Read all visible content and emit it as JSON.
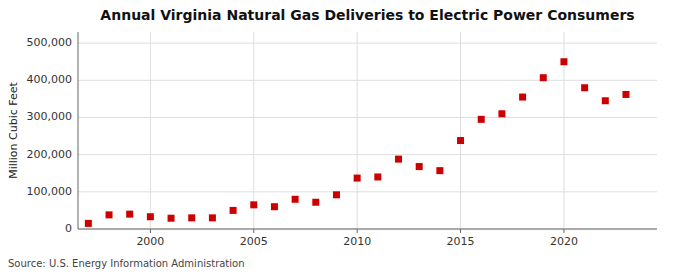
{
  "chart_data": {
    "type": "scatter",
    "title": "Annual Virginia Natural Gas Deliveries to Electric Power Consumers",
    "ylabel": "Million Cubic Feet",
    "source": "Source: U.S. Energy Information Administration",
    "x": [
      1997,
      1998,
      1999,
      2000,
      2001,
      2002,
      2003,
      2004,
      2005,
      2006,
      2007,
      2008,
      2009,
      2010,
      2011,
      2012,
      2013,
      2014,
      2015,
      2016,
      2017,
      2018,
      2019,
      2020,
      2021,
      2022,
      2023
    ],
    "values": [
      15000,
      38000,
      40000,
      33000,
      29000,
      30000,
      30000,
      50000,
      65000,
      60000,
      80000,
      72000,
      92000,
      137000,
      140000,
      188000,
      168000,
      157000,
      238000,
      295000,
      310000,
      355000,
      407000,
      450000,
      380000,
      345000,
      362000
    ],
    "color": "#cc0000",
    "marker": "square",
    "xlim": [
      1996.5,
      2024.5
    ],
    "ylim": [
      0,
      530000
    ],
    "xticks": [
      2000,
      2005,
      2010,
      2015,
      2020
    ],
    "yticks": [
      0,
      {
        "value": 100000,
        "label": "100,000"
      },
      {
        "value": 200000,
        "label": "200,000"
      },
      {
        "value": 300000,
        "label": "300,000"
      },
      {
        "value": 400000,
        "label": "400,000"
      },
      {
        "value": 500000,
        "label": "500,000"
      }
    ],
    "grid": true
  }
}
